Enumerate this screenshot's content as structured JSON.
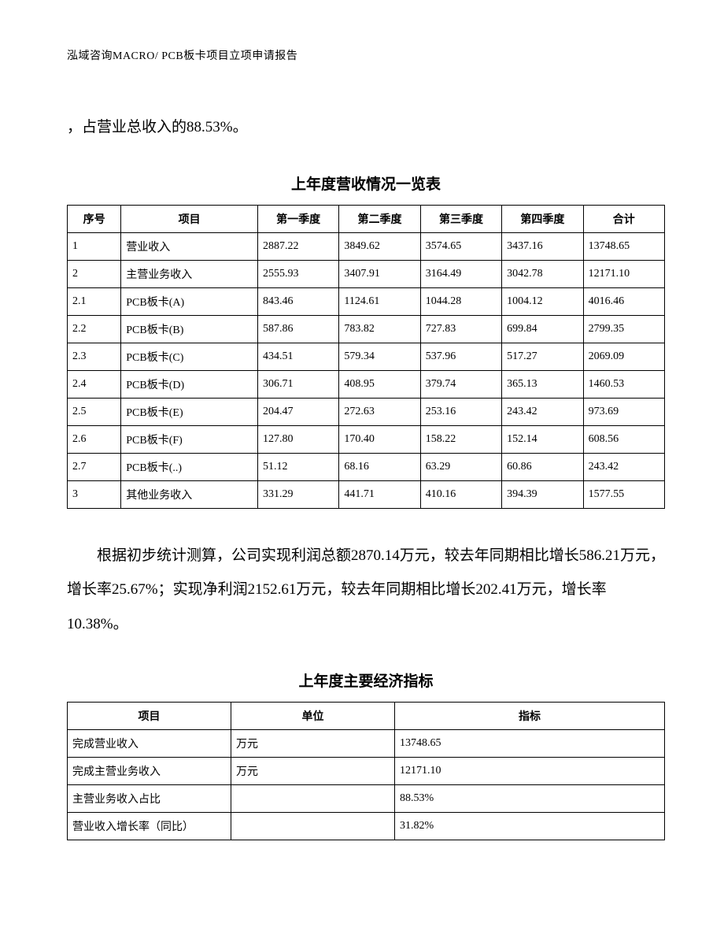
{
  "header": "泓域咨询MACRO/   PCB板卡项目立项申请报告",
  "para1": "，占营业总收入的88.53%。",
  "table1": {
    "title": "上年度营收情况一览表",
    "columns": [
      "序号",
      "项目",
      "第一季度",
      "第二季度",
      "第三季度",
      "第四季度",
      "合计"
    ],
    "rows": [
      [
        "1",
        "营业收入",
        "2887.22",
        "3849.62",
        "3574.65",
        "3437.16",
        "13748.65"
      ],
      [
        "2",
        "主营业务收入",
        "2555.93",
        "3407.91",
        "3164.49",
        "3042.78",
        "12171.10"
      ],
      [
        "2.1",
        "PCB板卡(A)",
        "843.46",
        "1124.61",
        "1044.28",
        "1004.12",
        "4016.46"
      ],
      [
        "2.2",
        "PCB板卡(B)",
        "587.86",
        "783.82",
        "727.83",
        "699.84",
        "2799.35"
      ],
      [
        "2.3",
        "PCB板卡(C)",
        "434.51",
        "579.34",
        "537.96",
        "517.27",
        "2069.09"
      ],
      [
        "2.4",
        "PCB板卡(D)",
        "306.71",
        "408.95",
        "379.74",
        "365.13",
        "1460.53"
      ],
      [
        "2.5",
        "PCB板卡(E)",
        "204.47",
        "272.63",
        "253.16",
        "243.42",
        "973.69"
      ],
      [
        "2.6",
        "PCB板卡(F)",
        "127.80",
        "170.40",
        "158.22",
        "152.14",
        "608.56"
      ],
      [
        "2.7",
        "PCB板卡(..)",
        "51.12",
        "68.16",
        "63.29",
        "60.86",
        "243.42"
      ],
      [
        "3",
        "其他业务收入",
        "331.29",
        "441.71",
        "410.16",
        "394.39",
        "1577.55"
      ]
    ]
  },
  "para2": "根据初步统计测算，公司实现利润总额2870.14万元，较去年同期相比增长586.21万元，增长率25.67%；实现净利润2152.61万元，较去年同期相比增长202.41万元，增长率10.38%。",
  "table2": {
    "title": "上年度主要经济指标",
    "columns": [
      "项目",
      "单位",
      "指标"
    ],
    "rows": [
      [
        "完成营业收入",
        "万元",
        "13748.65"
      ],
      [
        "完成主营业务收入",
        "万元",
        "12171.10"
      ],
      [
        "主营业务收入占比",
        "",
        "88.53%"
      ],
      [
        "营业收入增长率（同比）",
        "",
        "31.82%"
      ]
    ]
  }
}
